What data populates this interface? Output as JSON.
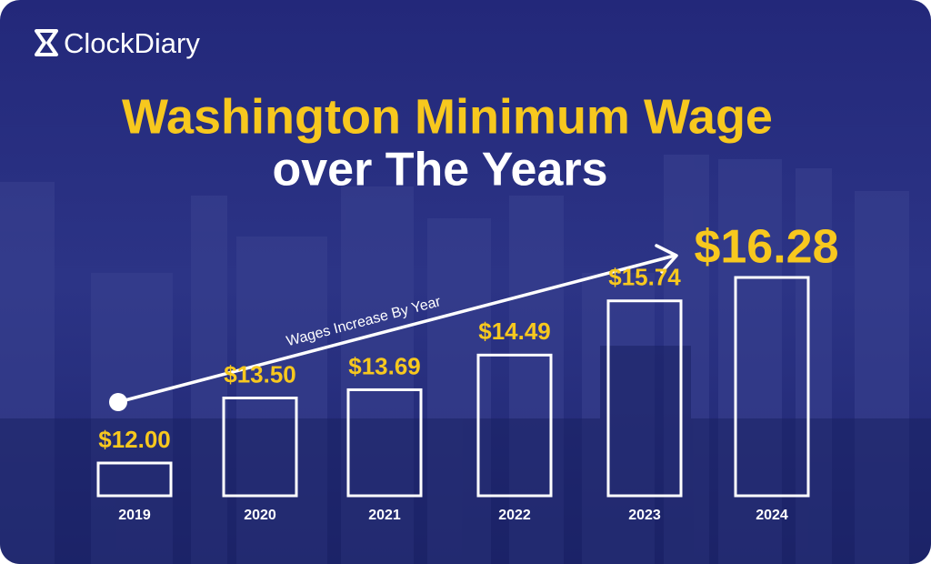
{
  "brand": "ClockDiary",
  "chart_data": {
    "type": "bar",
    "title": "Washington Minimum Wage",
    "subtitle": "over The Years",
    "annotation": "Wages Increase By Year",
    "categories": [
      "2019",
      "2020",
      "2021",
      "2022",
      "2023",
      "2024"
    ],
    "values": [
      12.0,
      13.5,
      13.69,
      14.49,
      15.74,
      16.28
    ],
    "value_labels": [
      "$12.00",
      "$13.50",
      "$13.69",
      "$14.49",
      "$15.74",
      "$16.28"
    ],
    "color": "#ffffff",
    "label_color": "#f7c81e"
  }
}
